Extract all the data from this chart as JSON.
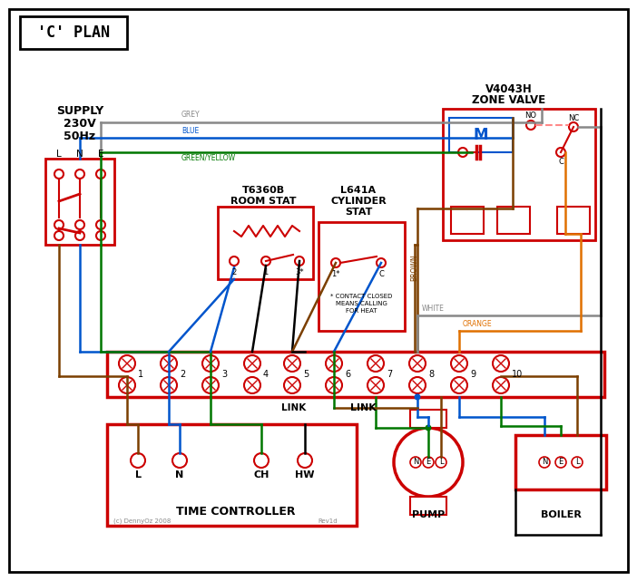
{
  "title": "'C' PLAN",
  "red": "#cc0000",
  "blue": "#0055cc",
  "green": "#007700",
  "grey": "#888888",
  "brown": "#7B3F00",
  "orange": "#E07000",
  "black": "#000000",
  "pink_dash": "#ff8888",
  "supply_text_lines": [
    "SUPPLY",
    "230V",
    "50Hz"
  ],
  "lne": [
    "L",
    "N",
    "E"
  ],
  "zone_valve_title1": "V4043H",
  "zone_valve_title2": "ZONE VALVE",
  "room_stat_title1": "T6360B",
  "room_stat_title2": "ROOM STAT",
  "cyl_stat_title1": "L641A",
  "cyl_stat_title2": "CYLINDER",
  "cyl_stat_title3": "STAT",
  "terminal_nums": [
    "1",
    "2",
    "3",
    "4",
    "5",
    "6",
    "7",
    "8",
    "9",
    "10"
  ],
  "tc_labels": [
    "L",
    "N",
    "CH",
    "HW"
  ],
  "tc_title": "TIME CONTROLLER",
  "pump_labels": [
    "N",
    "E",
    "L"
  ],
  "pump_title": "PUMP",
  "boiler_labels": [
    "N",
    "E",
    "L"
  ],
  "boiler_title": "BOILER",
  "label_grey": "GREY",
  "label_blue": "BLUE",
  "label_gy": "GREEN/YELLOW",
  "label_brown": "BROWN",
  "label_white": "WHITE",
  "label_orange": "ORANGE",
  "label_link": "LINK",
  "contact_note": "* CONTACT CLOSED\nMEANS CALLING\nFOR HEAT",
  "copyright": "(c) DennyOz 2008",
  "rev": "Rev1d",
  "no_label": "NO",
  "nc_label": "NC",
  "c_label": "C",
  "m_label": "M"
}
